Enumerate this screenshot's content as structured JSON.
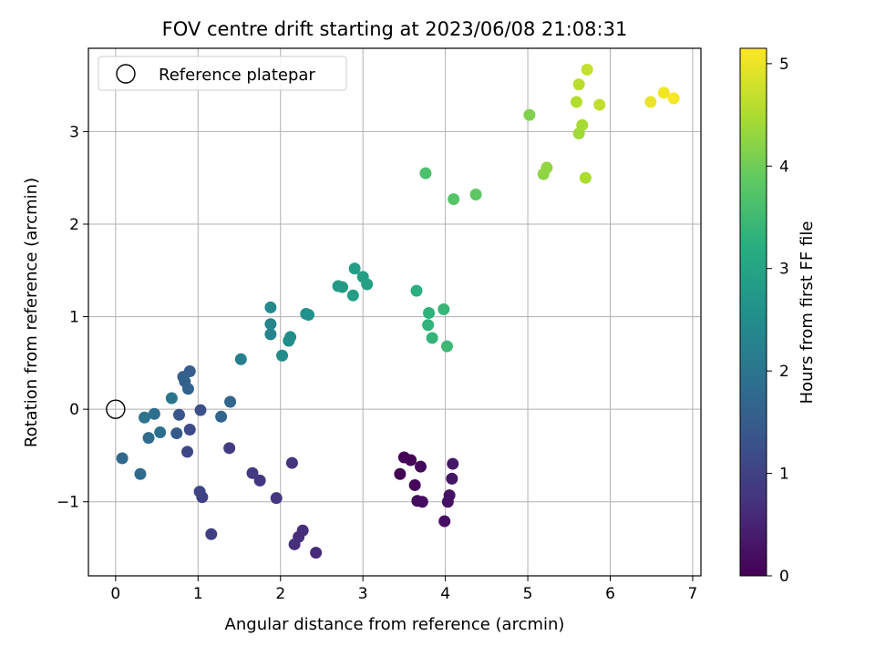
{
  "chart_data": {
    "type": "scatter",
    "title": "FOV centre drift starting at 2023/06/08 21:08:31",
    "xlabel": "Angular distance from reference (arcmin)",
    "ylabel": "Rotation from reference (arcmin)",
    "xlim": [
      -0.33,
      7.1
    ],
    "ylim": [
      -1.8,
      3.9
    ],
    "x_ticks": [
      0,
      1,
      2,
      3,
      4,
      5,
      6,
      7
    ],
    "y_ticks": [
      -1,
      0,
      1,
      2,
      3
    ],
    "x_tick_labels": [
      "0",
      "1",
      "2",
      "3",
      "4",
      "5",
      "6",
      "7"
    ],
    "y_tick_labels": [
      "−1",
      "0",
      "1",
      "2",
      "3"
    ],
    "grid": true,
    "legend": {
      "placement": "top-left",
      "entries": [
        {
          "label": "Reference platepar",
          "marker": "open-circle"
        }
      ]
    },
    "reference_point": {
      "x": 0,
      "y": 0
    },
    "colorbar": {
      "label": "Hours from first FF file",
      "colormap": "viridis",
      "min": 0,
      "max": 5.15,
      "ticks": [
        0,
        1,
        2,
        3,
        4,
        5
      ],
      "tick_labels": [
        "0",
        "1",
        "2",
        "3",
        "4",
        "5"
      ]
    },
    "points": [
      {
        "x": 3.45,
        "y": -0.7,
        "c": 0.0
      },
      {
        "x": 3.5,
        "y": -0.52,
        "c": 0.03
      },
      {
        "x": 3.58,
        "y": -0.55,
        "c": 0.06
      },
      {
        "x": 3.63,
        "y": -0.82,
        "c": 0.09
      },
      {
        "x": 3.7,
        "y": -0.62,
        "c": 0.12
      },
      {
        "x": 3.66,
        "y": -0.99,
        "c": 0.15
      },
      {
        "x": 3.72,
        "y": -1.0,
        "c": 0.18
      },
      {
        "x": 3.99,
        "y": -1.21,
        "c": 0.21
      },
      {
        "x": 4.03,
        "y": -1.0,
        "c": 0.24
      },
      {
        "x": 4.05,
        "y": -0.93,
        "c": 0.27
      },
      {
        "x": 4.08,
        "y": -0.75,
        "c": 0.3
      },
      {
        "x": 4.09,
        "y": -0.59,
        "c": 0.33
      },
      {
        "x": 2.43,
        "y": -1.55,
        "c": 0.6
      },
      {
        "x": 2.27,
        "y": -1.31,
        "c": 0.64
      },
      {
        "x": 2.22,
        "y": -1.38,
        "c": 0.68
      },
      {
        "x": 2.17,
        "y": -1.46,
        "c": 0.72
      },
      {
        "x": 2.14,
        "y": -0.58,
        "c": 0.76
      },
      {
        "x": 1.95,
        "y": -0.96,
        "c": 0.8
      },
      {
        "x": 1.75,
        "y": -0.77,
        "c": 0.84
      },
      {
        "x": 1.66,
        "y": -0.69,
        "c": 0.88
      },
      {
        "x": 1.38,
        "y": -0.42,
        "c": 0.92
      },
      {
        "x": 1.16,
        "y": -1.35,
        "c": 0.96
      },
      {
        "x": 1.05,
        "y": -0.95,
        "c": 1.0
      },
      {
        "x": 1.02,
        "y": -0.89,
        "c": 1.04
      },
      {
        "x": 0.87,
        "y": -0.46,
        "c": 1.1
      },
      {
        "x": 0.9,
        "y": -0.22,
        "c": 1.15
      },
      {
        "x": 1.03,
        "y": -0.01,
        "c": 1.25
      },
      {
        "x": 0.77,
        "y": -0.06,
        "c": 1.35
      },
      {
        "x": 0.74,
        "y": -0.26,
        "c": 1.45
      },
      {
        "x": 0.9,
        "y": 0.41,
        "c": 1.5
      },
      {
        "x": 0.82,
        "y": 0.35,
        "c": 1.55
      },
      {
        "x": 0.84,
        "y": 0.3,
        "c": 1.58
      },
      {
        "x": 0.88,
        "y": 0.22,
        "c": 1.62
      },
      {
        "x": 1.28,
        "y": -0.08,
        "c": 1.65
      },
      {
        "x": 1.39,
        "y": 0.08,
        "c": 1.7
      },
      {
        "x": 0.08,
        "y": -0.53,
        "c": 1.75
      },
      {
        "x": 0.3,
        "y": -0.7,
        "c": 1.78
      },
      {
        "x": 0.4,
        "y": -0.31,
        "c": 1.82
      },
      {
        "x": 0.47,
        "y": -0.05,
        "c": 1.86
      },
      {
        "x": 0.54,
        "y": -0.25,
        "c": 1.9
      },
      {
        "x": 0.35,
        "y": -0.09,
        "c": 1.95
      },
      {
        "x": 0.68,
        "y": 0.12,
        "c": 2.0
      },
      {
        "x": 1.52,
        "y": 0.54,
        "c": 2.2
      },
      {
        "x": 1.88,
        "y": 0.81,
        "c": 2.3
      },
      {
        "x": 1.88,
        "y": 0.92,
        "c": 2.35
      },
      {
        "x": 1.88,
        "y": 1.1,
        "c": 2.4
      },
      {
        "x": 2.02,
        "y": 0.58,
        "c": 2.45
      },
      {
        "x": 2.1,
        "y": 0.74,
        "c": 2.5
      },
      {
        "x": 2.12,
        "y": 0.78,
        "c": 2.52
      },
      {
        "x": 2.31,
        "y": 1.03,
        "c": 2.56
      },
      {
        "x": 2.34,
        "y": 1.02,
        "c": 2.6
      },
      {
        "x": 2.7,
        "y": 1.33,
        "c": 2.75
      },
      {
        "x": 2.75,
        "y": 1.32,
        "c": 2.78
      },
      {
        "x": 2.88,
        "y": 1.23,
        "c": 2.82
      },
      {
        "x": 2.9,
        "y": 1.52,
        "c": 2.85
      },
      {
        "x": 3.0,
        "y": 1.43,
        "c": 2.88
      },
      {
        "x": 3.05,
        "y": 1.35,
        "c": 2.92
      },
      {
        "x": 3.65,
        "y": 1.28,
        "c": 3.25
      },
      {
        "x": 3.8,
        "y": 1.04,
        "c": 3.3
      },
      {
        "x": 3.79,
        "y": 0.91,
        "c": 3.33
      },
      {
        "x": 3.84,
        "y": 0.77,
        "c": 3.36
      },
      {
        "x": 3.98,
        "y": 1.08,
        "c": 3.4
      },
      {
        "x": 4.02,
        "y": 0.68,
        "c": 3.45
      },
      {
        "x": 3.76,
        "y": 2.55,
        "c": 3.65
      },
      {
        "x": 4.1,
        "y": 2.27,
        "c": 3.75
      },
      {
        "x": 4.37,
        "y": 2.32,
        "c": 3.85
      },
      {
        "x": 5.02,
        "y": 3.18,
        "c": 4.15
      },
      {
        "x": 5.19,
        "y": 2.54,
        "c": 4.25
      },
      {
        "x": 5.23,
        "y": 2.61,
        "c": 4.28
      },
      {
        "x": 5.62,
        "y": 2.98,
        "c": 4.4
      },
      {
        "x": 5.66,
        "y": 3.07,
        "c": 4.45
      },
      {
        "x": 5.7,
        "y": 2.5,
        "c": 4.5
      },
      {
        "x": 5.59,
        "y": 3.32,
        "c": 4.55
      },
      {
        "x": 5.62,
        "y": 3.51,
        "c": 4.62
      },
      {
        "x": 5.72,
        "y": 3.67,
        "c": 4.7
      },
      {
        "x": 5.87,
        "y": 3.29,
        "c": 4.65
      },
      {
        "x": 6.49,
        "y": 3.32,
        "c": 5.0
      },
      {
        "x": 6.65,
        "y": 3.42,
        "c": 5.05
      },
      {
        "x": 6.77,
        "y": 3.36,
        "c": 5.12
      }
    ]
  }
}
